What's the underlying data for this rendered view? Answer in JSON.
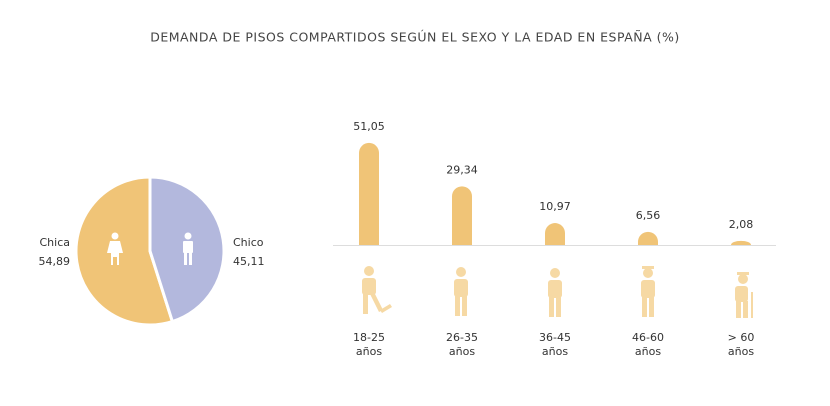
{
  "title": "DEMANDA DE PISOS COMPARTIDOS SEGÚN EL SEXO Y LA EDAD EN ESPAÑA (%)",
  "chart_data": [
    {
      "type": "pie",
      "categories": [
        "Chica",
        "Chico"
      ],
      "values": [
        54.89,
        45.11
      ],
      "value_labels": [
        "54,89",
        "45,11"
      ],
      "colors": [
        "#f0c477",
        "#b3b8dd"
      ]
    },
    {
      "type": "bar",
      "categories": [
        "18-25 años",
        "26-35 años",
        "36-45 años",
        "46-60 años",
        "> 60 años"
      ],
      "values": [
        51.05,
        29.34,
        10.97,
        6.56,
        2.08
      ],
      "value_labels": [
        "51,05",
        "29,34",
        "10,97",
        "6,56",
        "2,08"
      ],
      "color": "#f0c477"
    }
  ]
}
